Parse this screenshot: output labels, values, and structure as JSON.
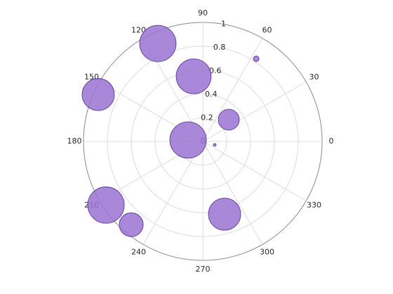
{
  "chart_data": {
    "type": "polar-bubble",
    "theta": [
      114.6,
      98,
      57.2,
      155.8,
      40,
      174.6,
      343.6,
      213.4,
      229.4,
      286.6
    ],
    "r": [
      0.905,
      0.552,
      0.826,
      0.961,
      0.284,
      0.124,
      0.104,
      0.972,
      0.922,
      0.638
    ],
    "sizes": [
      100,
      92,
      2.4,
      78,
      33,
      100,
      0.6,
      100,
      43,
      78
    ],
    "color": "#9a73d3",
    "edge_color": "#4b2a8a",
    "rlim": [
      0,
      1
    ],
    "rticks": [
      0,
      0.2,
      0.4,
      0.6,
      0.8,
      1
    ],
    "thetaticks": [
      0,
      30,
      60,
      90,
      120,
      150,
      180,
      210,
      240,
      270,
      300,
      330
    ],
    "grid": true
  }
}
